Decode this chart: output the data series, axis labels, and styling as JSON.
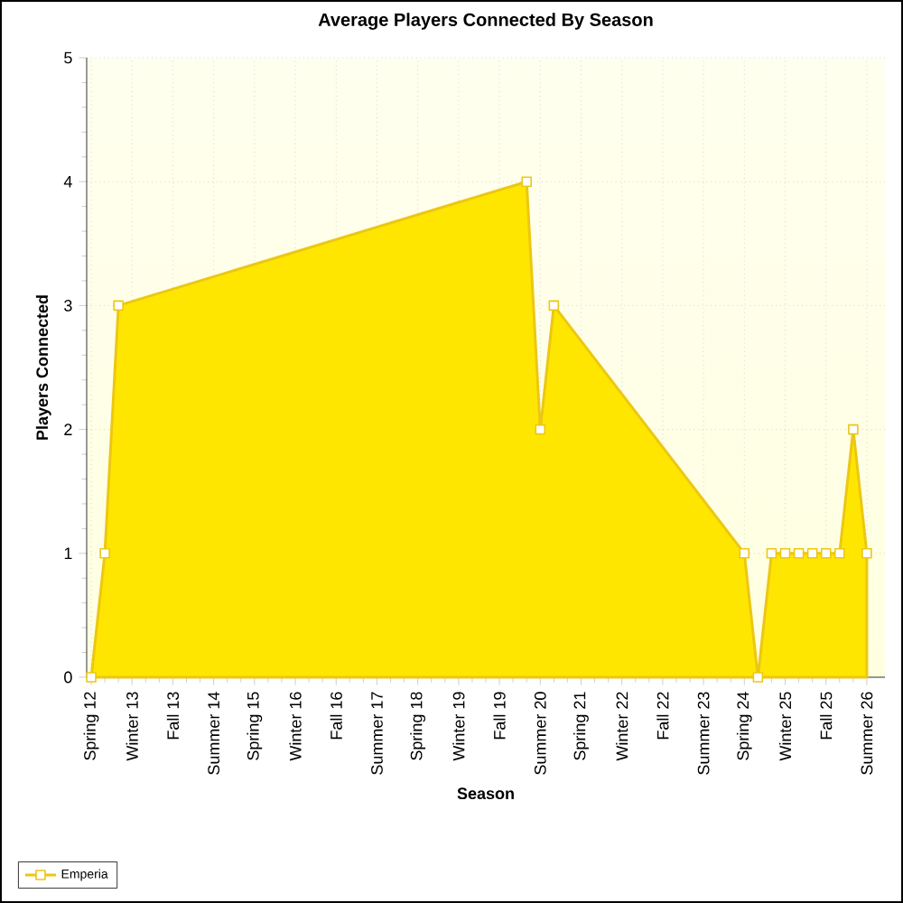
{
  "chart_data": {
    "type": "area",
    "title": "Average Players Connected By Season",
    "xlabel": "Season",
    "ylabel": "Players Connected",
    "xlim": [
      "2012-03",
      "2026-11"
    ],
    "ylim": [
      0,
      5
    ],
    "yticks": [
      0,
      1,
      2,
      3,
      4,
      5
    ],
    "xticks": [
      {
        "value": "2012-04",
        "label": "Spring 12"
      },
      {
        "value": "2013-01",
        "label": "Winter 13"
      },
      {
        "value": "2013-10",
        "label": "Fall 13"
      },
      {
        "value": "2014-07",
        "label": "Summer 14"
      },
      {
        "value": "2015-04",
        "label": "Spring 15"
      },
      {
        "value": "2016-01",
        "label": "Winter 16"
      },
      {
        "value": "2016-10",
        "label": "Fall 16"
      },
      {
        "value": "2017-07",
        "label": "Summer 17"
      },
      {
        "value": "2018-04",
        "label": "Spring 18"
      },
      {
        "value": "2019-01",
        "label": "Winter 19"
      },
      {
        "value": "2019-10",
        "label": "Fall 19"
      },
      {
        "value": "2020-07",
        "label": "Summer 20"
      },
      {
        "value": "2021-04",
        "label": "Spring 21"
      },
      {
        "value": "2022-01",
        "label": "Winter 22"
      },
      {
        "value": "2022-10",
        "label": "Fall 22"
      },
      {
        "value": "2023-07",
        "label": "Summer 23"
      },
      {
        "value": "2024-04",
        "label": "Spring 24"
      },
      {
        "value": "2025-01",
        "label": "Winter 25"
      },
      {
        "value": "2025-10",
        "label": "Fall 25"
      },
      {
        "value": "2026-07",
        "label": "Summer 26"
      }
    ],
    "grid": true,
    "legend": "bottom left",
    "marker": "square",
    "series": [
      {
        "name": "Emperia",
        "color": "#ffe600",
        "x": [
          "2012-04",
          "2012-07",
          "2012-10",
          "2020-04",
          "2020-07",
          "2020-10",
          "2024-04",
          "2024-07",
          "2024-10",
          "2025-01",
          "2025-04",
          "2025-07",
          "2025-10",
          "2026-01",
          "2026-04",
          "2026-07"
        ],
        "values": [
          0,
          1,
          3,
          4,
          2,
          3,
          1,
          0,
          1,
          1,
          1,
          1,
          1,
          1,
          2,
          1
        ]
      }
    ]
  }
}
